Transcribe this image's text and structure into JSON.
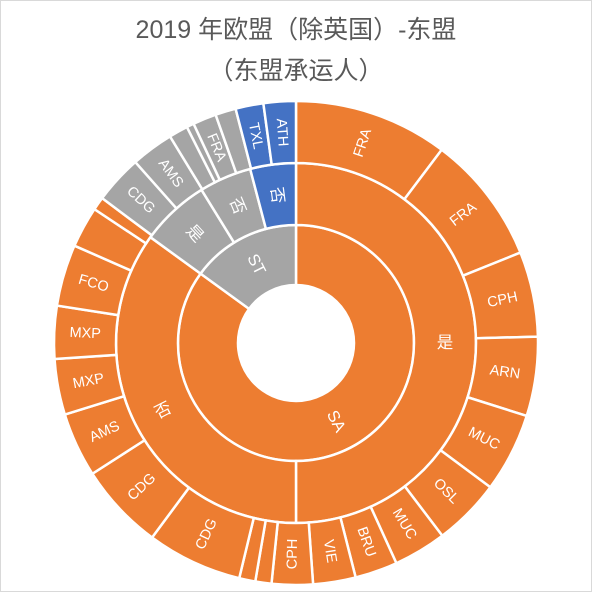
{
  "chart_data": {
    "type": "sunburst",
    "title": "2019 年欧盟（除英国）-东盟",
    "subtitle": "（东盟承运人）",
    "colors": {
      "SA": "#ED7D31",
      "ST-是": "#A5A5A5",
      "ST-否": "#4472C4"
    },
    "rings": [
      {
        "name": "inner",
        "segments": [
          {
            "label": "SA",
            "value": 85,
            "group": "SA"
          },
          {
            "label": "ST",
            "value": 15,
            "group": "ST-是"
          }
        ]
      },
      {
        "name": "middle",
        "segments": [
          {
            "label": "是",
            "value": 50,
            "group": "SA"
          },
          {
            "label": "否",
            "value": 35,
            "group": "SA"
          },
          {
            "label": "是",
            "value": 6.2,
            "group": "ST-是"
          },
          {
            "label": "否",
            "value": 4.7,
            "group": "ST-是"
          },
          {
            "label": "否",
            "value": 4.1,
            "group": "ST-否"
          }
        ]
      },
      {
        "name": "outer",
        "segments": [
          {
            "label": "FRA",
            "value": 10.5,
            "group": "SA"
          },
          {
            "label": "FRA",
            "value": 8.8,
            "group": "SA"
          },
          {
            "label": "CPH",
            "value": 5.8,
            "group": "SA"
          },
          {
            "label": "ARN",
            "value": 5.4,
            "group": "SA"
          },
          {
            "label": "MUC",
            "value": 5.4,
            "group": "SA"
          },
          {
            "label": "OSL",
            "value": 4.6,
            "group": "SA"
          },
          {
            "label": "MUC",
            "value": 3.6,
            "group": "SA"
          },
          {
            "label": "BRU",
            "value": 2.9,
            "group": "SA"
          },
          {
            "label": "VIE",
            "value": 2.9,
            "group": "SA"
          },
          {
            "label": "CPH",
            "value": 2.8,
            "group": "SA"
          },
          {
            "label": "",
            "value": 1.1,
            "group": "SA"
          },
          {
            "label": "",
            "value": 1.1,
            "group": "SA"
          },
          {
            "label": "CDG",
            "value": 6.5,
            "group": "SA"
          },
          {
            "label": "CDG",
            "value": 5.9,
            "group": "SA"
          },
          {
            "label": "AMS",
            "value": 4.4,
            "group": "SA"
          },
          {
            "label": "MXP",
            "value": 3.8,
            "group": "SA"
          },
          {
            "label": "MXP",
            "value": 3.6,
            "group": "SA"
          },
          {
            "label": "FCO",
            "value": 4.2,
            "group": "SA"
          },
          {
            "label": "",
            "value": 2.8,
            "group": "SA"
          },
          {
            "label": "",
            "value": 0.9,
            "group": "SA"
          },
          {
            "label": "CDG",
            "value": 3.3,
            "group": "ST-是"
          },
          {
            "label": "AMS",
            "value": 2.9,
            "group": "ST-是"
          },
          {
            "label": "",
            "value": 1.3,
            "group": "ST-是"
          },
          {
            "label": "",
            "value": 0.5,
            "group": "ST-是"
          },
          {
            "label": "FRA",
            "value": 1.6,
            "group": "ST-是"
          },
          {
            "label": "",
            "value": 1.4,
            "group": "ST-是"
          },
          {
            "label": "TXL",
            "value": 1.9,
            "group": "ST-否"
          },
          {
            "label": "ATH",
            "value": 2.2,
            "group": "ST-否"
          }
        ]
      }
    ]
  }
}
